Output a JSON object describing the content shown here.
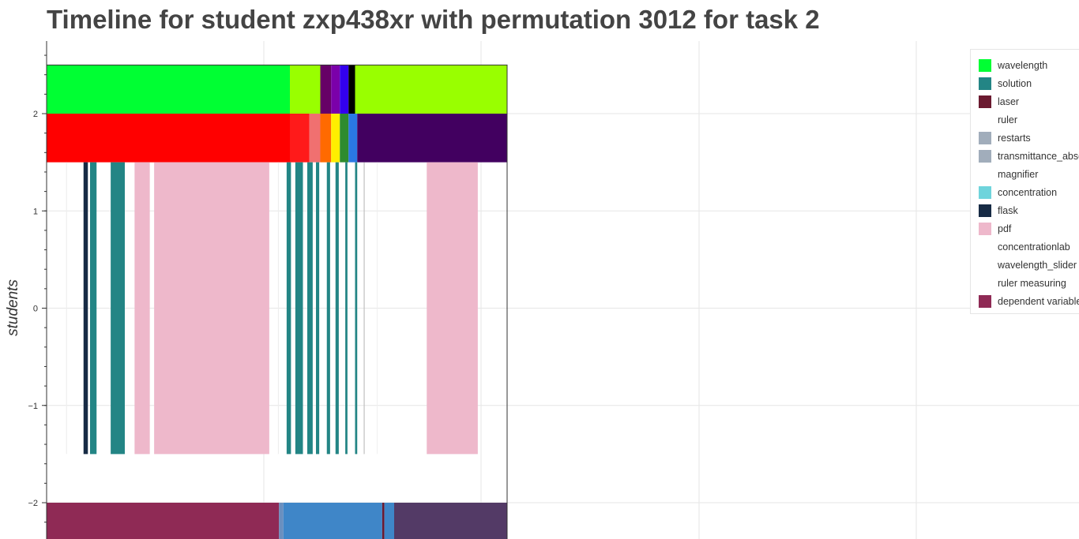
{
  "chart_data": {
    "type": "timeline",
    "title": "Timeline for student zxp438xr with permutation 3012 for task 2",
    "ylabel": "students",
    "xlabel": "",
    "ylim": [
      -2.35,
      2.7
    ],
    "xlim": [
      0,
      1000
    ],
    "yticks": [
      2,
      1,
      0,
      -1,
      -2
    ],
    "ytick_labels": [
      "2",
      "1",
      "0",
      "−1",
      "−2"
    ],
    "grid": true,
    "legend_position": "top-right",
    "legend": [
      {
        "label": "wavelength",
        "color": "#00ff33"
      },
      {
        "label": "solution",
        "color": "#238585"
      },
      {
        "label": "laser",
        "color": "#6b1a30"
      },
      {
        "label": "ruler",
        "color": "#ffffff"
      },
      {
        "label": "restarts",
        "color": "#a1adbb"
      },
      {
        "label": "transmittance_absorbance",
        "color": "#a1adbb"
      },
      {
        "label": "magnifier",
        "color": "#ffffff"
      },
      {
        "label": "concentration",
        "color": "#6fd4dc"
      },
      {
        "label": "flask",
        "color": "#172b45"
      },
      {
        "label": "pdf",
        "color": "#eeb8cb"
      },
      {
        "label": "concentrationlab",
        "color": "#ffffff"
      },
      {
        "label": "wavelength_slider",
        "color": "#ffffff"
      },
      {
        "label": "ruler measuring",
        "color": "#ffffff"
      },
      {
        "label": "dependent variable",
        "color": "#8f2a55"
      }
    ],
    "bands": [
      {
        "name": "top-band",
        "y0": 2.0,
        "y1": 2.5,
        "segments": [
          {
            "x0": 0,
            "x1": 112,
            "color": "#00ff33"
          },
          {
            "x0": 112,
            "x1": 126,
            "color": "#99ff00"
          },
          {
            "x0": 126,
            "x1": 131,
            "color": "#660066"
          },
          {
            "x0": 131,
            "x1": 135,
            "color": "#7b00aa"
          },
          {
            "x0": 135,
            "x1": 139,
            "color": "#3300ee"
          },
          {
            "x0": 139,
            "x1": 142,
            "color": "#000000"
          },
          {
            "x0": 142,
            "x1": 212,
            "color": "#99ff00"
          }
        ]
      },
      {
        "name": "second-band",
        "y0": 1.5,
        "y1": 2.0,
        "segments": [
          {
            "x0": 0,
            "x1": 112,
            "color": "#ff0000"
          },
          {
            "x0": 112,
            "x1": 121,
            "color": "#ff1a1a"
          },
          {
            "x0": 121,
            "x1": 126,
            "color": "#f07070"
          },
          {
            "x0": 126,
            "x1": 131,
            "color": "#ff6a00"
          },
          {
            "x0": 131,
            "x1": 135,
            "color": "#ffee00"
          },
          {
            "x0": 135,
            "x1": 139,
            "color": "#2e8b2e"
          },
          {
            "x0": 139,
            "x1": 143,
            "color": "#2a78e4"
          },
          {
            "x0": 143,
            "x1": 212,
            "color": "#420060"
          }
        ]
      },
      {
        "name": "bottom-band",
        "y0": -2.5,
        "y1": -2.0,
        "segments": [
          {
            "x0": 0,
            "x1": 107,
            "color": "#8f2a55"
          },
          {
            "x0": 107,
            "x1": 109,
            "color": "#6a8fbf"
          },
          {
            "x0": 109,
            "x1": 154.5,
            "color": "#3f86c8"
          },
          {
            "x0": 154.5,
            "x1": 155.5,
            "color": "#6b1a30"
          },
          {
            "x0": 155.5,
            "x1": 160,
            "color": "#3f86c8"
          },
          {
            "x0": 160,
            "x1": 212,
            "color": "#533a66"
          }
        ]
      }
    ],
    "events": {
      "y0": -1.5,
      "y1": 1.5,
      "items": [
        {
          "x0": 9.0,
          "x1": 9.4,
          "color": "#eeeeee"
        },
        {
          "x0": 17.0,
          "x1": 19.0,
          "color": "#172b45"
        },
        {
          "x0": 20.0,
          "x1": 23.0,
          "color": "#238585"
        },
        {
          "x0": 29.5,
          "x1": 36.0,
          "color": "#238585"
        },
        {
          "x0": 40.5,
          "x1": 47.5,
          "color": "#eeb8cb"
        },
        {
          "x0": 49.5,
          "x1": 102.5,
          "color": "#eeb8cb"
        },
        {
          "x0": 106.5,
          "x1": 106.9,
          "color": "#eeeeee"
        },
        {
          "x0": 110.5,
          "x1": 112.5,
          "color": "#238585"
        },
        {
          "x0": 114.5,
          "x1": 118.0,
          "color": "#238585"
        },
        {
          "x0": 120.0,
          "x1": 122.5,
          "color": "#238585"
        },
        {
          "x0": 124.0,
          "x1": 125.5,
          "color": "#238585"
        },
        {
          "x0": 129.0,
          "x1": 130.5,
          "color": "#238585"
        },
        {
          "x0": 133.0,
          "x1": 134.5,
          "color": "#238585"
        },
        {
          "x0": 137.5,
          "x1": 138.5,
          "color": "#238585"
        },
        {
          "x0": 142.0,
          "x1": 143.0,
          "color": "#238585"
        },
        {
          "x0": 146.0,
          "x1": 146.4,
          "color": "#bbbbbb"
        },
        {
          "x0": 152.0,
          "x1": 152.3,
          "color": "#eeeeee"
        },
        {
          "x0": 175.0,
          "x1": 198.5,
          "color": "#eeb8cb"
        }
      ]
    }
  }
}
